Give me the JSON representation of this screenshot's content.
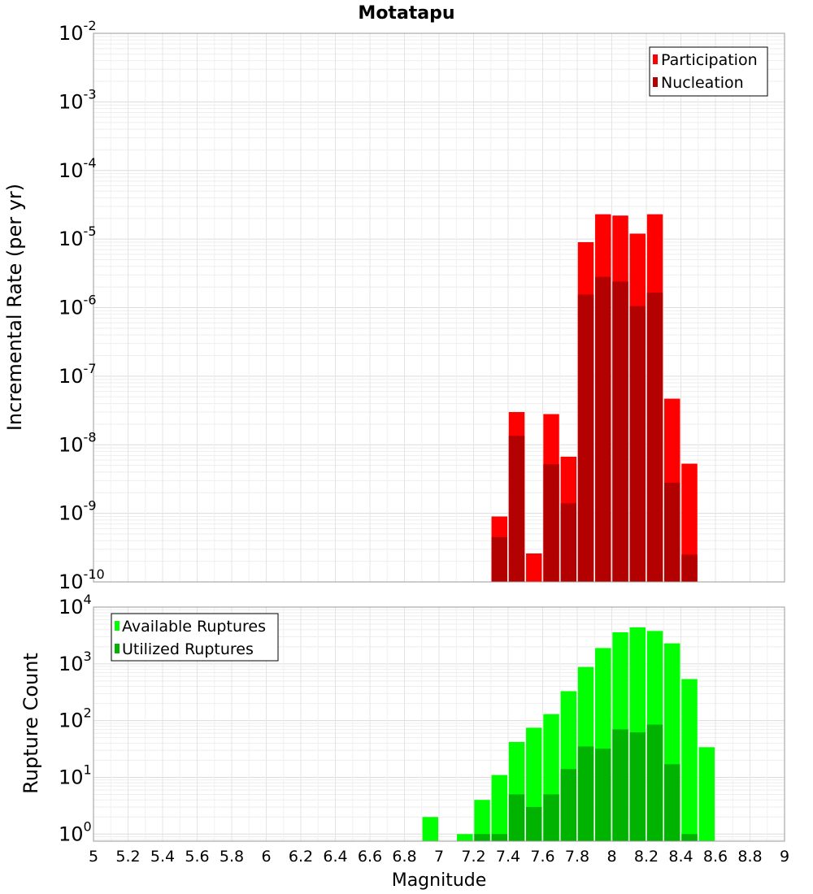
{
  "chart_data": [
    {
      "type": "bar",
      "title": "Motatapu",
      "ylabel": "Incremental Rate (per yr)",
      "y_scale": "log",
      "ylim": [
        1e-10,
        0.01
      ],
      "y_ticks": [
        {
          "base": "10",
          "exp": "-2"
        },
        {
          "base": "10",
          "exp": "-3"
        },
        {
          "base": "10",
          "exp": "-4"
        },
        {
          "base": "10",
          "exp": "-5"
        },
        {
          "base": "10",
          "exp": "-6"
        },
        {
          "base": "10",
          "exp": "-7"
        },
        {
          "base": "10",
          "exp": "-8"
        },
        {
          "base": "10",
          "exp": "-9"
        },
        {
          "base": "10",
          "exp": "-10"
        }
      ],
      "xlim": [
        5,
        9
      ],
      "legend_position": "top-right",
      "grid": true,
      "series": [
        {
          "name": "Participation",
          "color": "#ff0000",
          "x": [
            7.3,
            7.4,
            7.5,
            7.6,
            7.7,
            7.8,
            7.9,
            8.0,
            8.1,
            8.2,
            8.3,
            8.4
          ],
          "values": [
            9e-10,
            3e-08,
            2.6e-10,
            2.8e-08,
            6.7e-09,
            9e-06,
            2.3e-05,
            2.2e-05,
            1.2e-05,
            2.3e-05,
            4.7e-08,
            5.3e-09
          ]
        },
        {
          "name": "Nucleation",
          "color": "#b30000",
          "x": [
            7.3,
            7.4,
            7.5,
            7.6,
            7.7,
            7.8,
            7.9,
            8.0,
            8.1,
            8.2,
            8.3,
            8.4
          ],
          "values": [
            4.5e-10,
            1.35e-08,
            1e-10,
            5.2e-09,
            1.4e-09,
            1.55e-06,
            2.8e-06,
            2.4e-06,
            1.05e-06,
            1.65e-06,
            2.8e-09,
            2.5e-10
          ]
        }
      ]
    },
    {
      "type": "bar",
      "xlabel": "Magnitude",
      "ylabel": "Rupture Count",
      "y_scale": "log",
      "ylim": [
        0.75,
        10000
      ],
      "y_ticks": [
        {
          "base": "10",
          "exp": "4"
        },
        {
          "base": "10",
          "exp": "3"
        },
        {
          "base": "10",
          "exp": "2"
        },
        {
          "base": "10",
          "exp": "1"
        },
        {
          "base": "10",
          "exp": "0"
        }
      ],
      "xlim": [
        5,
        9
      ],
      "x_ticks": [
        "5",
        "5.2",
        "5.4",
        "5.6",
        "5.8",
        "6",
        "6.2",
        "6.4",
        "6.6",
        "6.8",
        "7",
        "7.2",
        "7.4",
        "7.6",
        "7.8",
        "8",
        "8.2",
        "8.4",
        "8.6",
        "8.8",
        "9"
      ],
      "legend_position": "top-left",
      "grid": true,
      "series": [
        {
          "name": "Available Ruptures",
          "color": "#00ff00",
          "x": [
            6.9,
            7.1,
            7.2,
            7.3,
            7.4,
            7.5,
            7.6,
            7.7,
            7.8,
            7.9,
            8.0,
            8.1,
            8.2,
            8.3,
            8.4,
            8.5
          ],
          "values": [
            2,
            1,
            4,
            11,
            42,
            75,
            130,
            330,
            880,
            1900,
            3600,
            4400,
            3800,
            2300,
            540,
            34
          ]
        },
        {
          "name": "Utilized Ruptures",
          "color": "#00b300",
          "x": [
            7.2,
            7.3,
            7.4,
            7.5,
            7.6,
            7.7,
            7.8,
            7.9,
            8.0,
            8.1,
            8.2,
            8.3,
            8.4
          ],
          "values": [
            1,
            1,
            5,
            3,
            5,
            14,
            35,
            32,
            70,
            62,
            85,
            17,
            1
          ]
        }
      ]
    }
  ]
}
